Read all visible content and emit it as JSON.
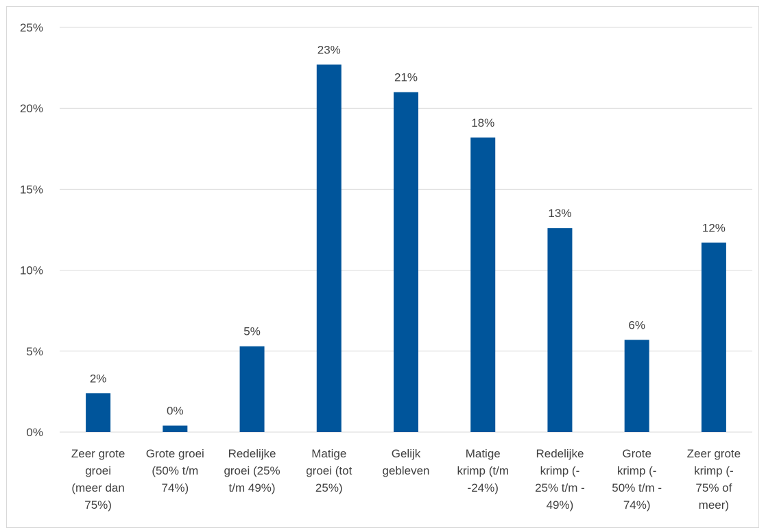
{
  "chart_data": {
    "type": "bar",
    "title": "",
    "xlabel": "",
    "ylabel": "",
    "categories": [
      [
        "Zeer grote",
        "groei",
        "(meer dan",
        "75%)"
      ],
      [
        "Grote groei",
        "(50% t/m",
        "74%)"
      ],
      [
        "Redelijke",
        "groei (25%",
        "t/m 49%)"
      ],
      [
        "Matige",
        "groei (tot",
        "25%)"
      ],
      [
        "Gelijk",
        "gebleven"
      ],
      [
        "Matige",
        "krimp (t/m",
        "-24%)"
      ],
      [
        "Redelijke",
        "krimp (-",
        "25% t/m -",
        "49%)"
      ],
      [
        "Grote",
        "krimp (-",
        "50% t/m -",
        "74%)"
      ],
      [
        "Zeer grote",
        "krimp (-",
        "75% of",
        "meer)"
      ]
    ],
    "values": [
      2.4,
      0.4,
      5.3,
      22.7,
      21.0,
      18.2,
      12.6,
      5.7,
      11.7
    ],
    "data_labels": [
      "2%",
      "0%",
      "5%",
      "23%",
      "21%",
      "18%",
      "13%",
      "6%",
      "12%"
    ],
    "ylim": [
      0,
      25
    ],
    "y_ticks": [
      0,
      5,
      10,
      15,
      20,
      25
    ],
    "y_tick_labels": [
      "0%",
      "5%",
      "10%",
      "15%",
      "20%",
      "25%"
    ],
    "grid": true,
    "legend": "none",
    "colors": {
      "bar": "#00559b",
      "grid": "#d9d9d9",
      "text": "#404040"
    }
  }
}
